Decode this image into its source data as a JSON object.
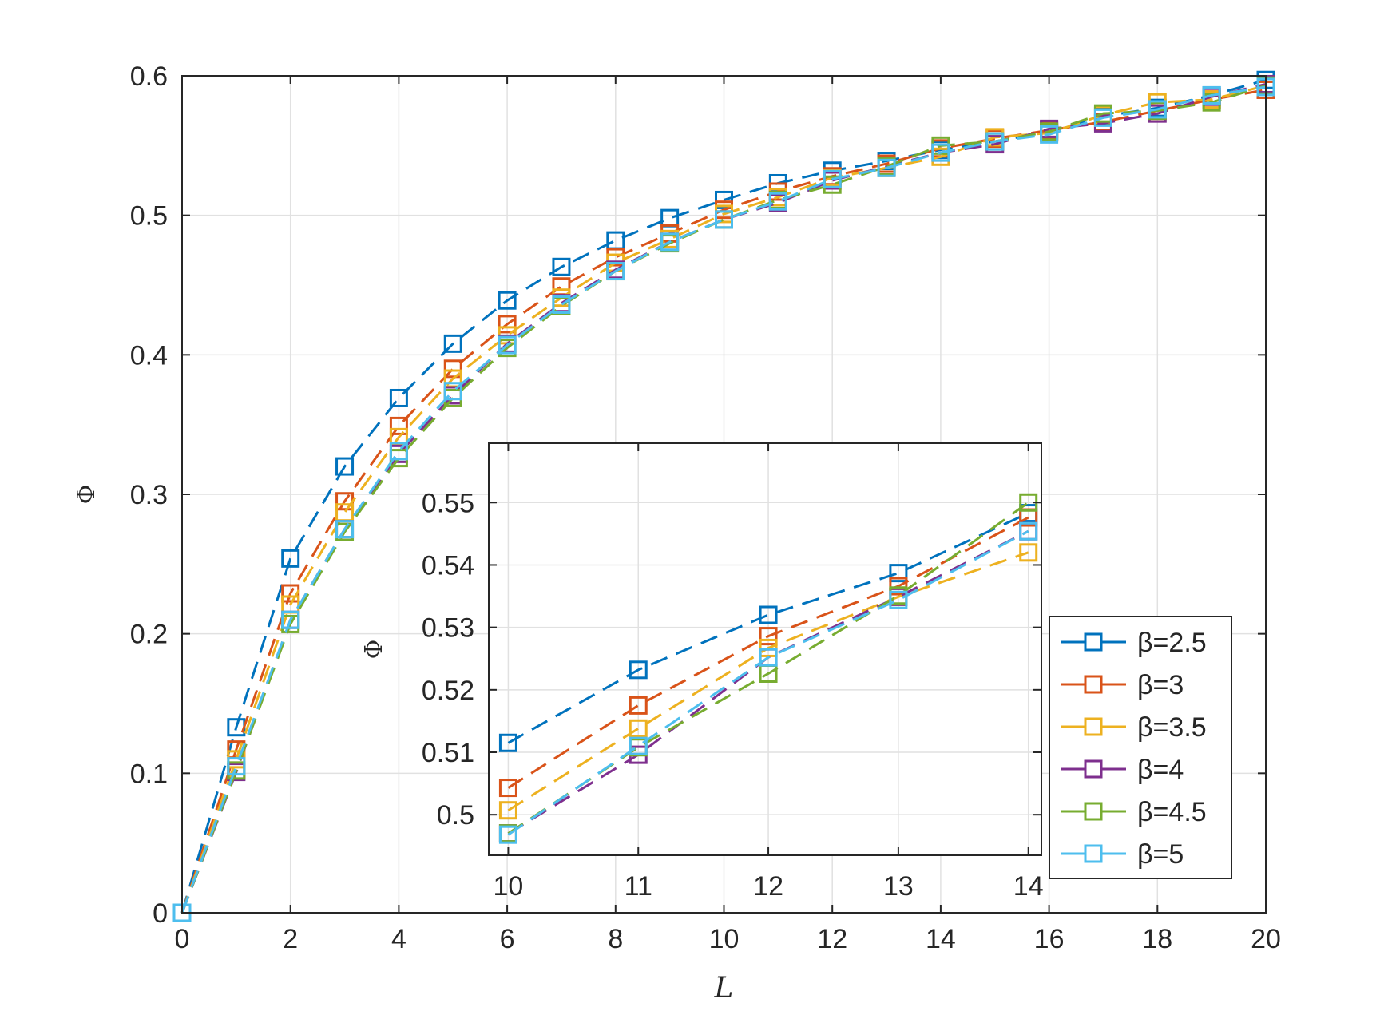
{
  "chart_data": [
    {
      "type": "line",
      "xlabel": "L",
      "ylabel": "Φ",
      "xlim": [
        0,
        20
      ],
      "ylim": [
        0,
        0.6
      ],
      "xticks": [
        "0",
        "2",
        "4",
        "6",
        "8",
        "10",
        "12",
        "14",
        "16",
        "18",
        "20"
      ],
      "yticks": [
        "0",
        "0.1",
        "0.2",
        "0.3",
        "0.4",
        "0.5",
        "0.6"
      ],
      "grid": true,
      "legend_position": "lower-right",
      "marker": "square",
      "line_style": "dashed",
      "series": [
        {
          "name": "β=2.5",
          "color": "#0072BD",
          "x": [
            0,
            1,
            2,
            3,
            4,
            5,
            6,
            7,
            8,
            9,
            10,
            11,
            12,
            13,
            14,
            15,
            16,
            17,
            18,
            19,
            20
          ],
          "values": [
            0,
            0.133,
            0.254,
            0.32,
            0.369,
            0.408,
            0.439,
            0.463,
            0.482,
            0.498,
            0.511,
            0.523,
            0.532,
            0.539,
            0.547,
            0.553,
            0.56,
            0.571,
            0.577,
            0.586,
            0.597
          ]
        },
        {
          "name": "β=3",
          "color": "#D95319",
          "x": [
            0,
            1,
            2,
            3,
            4,
            5,
            6,
            7,
            8,
            9,
            10,
            11,
            12,
            13,
            14,
            15,
            16,
            17,
            18,
            19,
            20
          ],
          "values": [
            0,
            0.117,
            0.229,
            0.295,
            0.349,
            0.39,
            0.422,
            0.449,
            0.47,
            0.487,
            0.504,
            0.517,
            0.528,
            0.537,
            0.548,
            0.555,
            0.561,
            0.567,
            0.575,
            0.583,
            0.59
          ]
        },
        {
          "name": "β=3.5",
          "color": "#EDB120",
          "x": [
            0,
            1,
            2,
            3,
            4,
            5,
            6,
            7,
            8,
            9,
            10,
            11,
            12,
            13,
            14,
            15,
            16,
            17,
            18,
            19,
            20
          ],
          "values": [
            0,
            0.11,
            0.221,
            0.287,
            0.341,
            0.383,
            0.414,
            0.441,
            0.466,
            0.483,
            0.501,
            0.513,
            0.527,
            0.534,
            0.542,
            0.556,
            0.559,
            0.572,
            0.581,
            0.583,
            0.593
          ]
        },
        {
          "name": "β=4",
          "color": "#7E2F8E",
          "x": [
            0,
            1,
            2,
            3,
            4,
            5,
            6,
            7,
            8,
            9,
            10,
            11,
            12,
            13,
            14,
            15,
            16,
            17,
            18,
            19,
            20
          ],
          "values": [
            0,
            0.101,
            0.21,
            0.275,
            0.329,
            0.371,
            0.408,
            0.437,
            0.461,
            0.481,
            0.497,
            0.509,
            0.525,
            0.535,
            0.545,
            0.551,
            0.562,
            0.566,
            0.573,
            0.585,
            0.594
          ]
        },
        {
          "name": "β=4.5",
          "color": "#77AC30",
          "x": [
            0,
            1,
            2,
            3,
            4,
            5,
            6,
            7,
            8,
            9,
            10,
            11,
            12,
            13,
            14,
            15,
            16,
            17,
            18,
            19,
            20
          ],
          "values": [
            0,
            0.102,
            0.207,
            0.273,
            0.326,
            0.369,
            0.405,
            0.435,
            0.46,
            0.48,
            0.497,
            0.511,
            0.522,
            0.535,
            0.55,
            0.553,
            0.56,
            0.573,
            0.575,
            0.581,
            0.593
          ]
        },
        {
          "name": "β=5",
          "color": "#4DBEEE",
          "x": [
            0,
            1,
            2,
            3,
            4,
            5,
            6,
            7,
            8,
            9,
            10,
            11,
            12,
            13,
            14,
            15,
            16,
            17,
            18,
            19,
            20
          ],
          "values": [
            0,
            0.105,
            0.21,
            0.275,
            0.331,
            0.374,
            0.407,
            0.436,
            0.46,
            0.481,
            0.497,
            0.51,
            0.526,
            0.534,
            0.545,
            0.553,
            0.558,
            0.57,
            0.576,
            0.586,
            0.592
          ]
        }
      ]
    },
    {
      "type": "line",
      "role": "inset",
      "ylabel": "Φ",
      "xlim": [
        9.85,
        14.1
      ],
      "ylim": [
        0.4935,
        0.5595
      ],
      "xticks": [
        "10",
        "11",
        "12",
        "13",
        "14"
      ],
      "yticks": [
        "0.5",
        "0.51",
        "0.52",
        "0.53",
        "0.54",
        "0.55"
      ],
      "grid": true,
      "series": [
        {
          "name": "β=2.5",
          "color": "#0072BD",
          "x": [
            10,
            11,
            12,
            13,
            14
          ],
          "values": [
            0.5115,
            0.5232,
            0.532,
            0.5387,
            0.5483
          ]
        },
        {
          "name": "β=3",
          "color": "#D95319",
          "x": [
            10,
            11,
            12,
            13,
            14
          ],
          "values": [
            0.5043,
            0.5175,
            0.5286,
            0.5366,
            0.5476
          ]
        },
        {
          "name": "β=3.5",
          "color": "#EDB120",
          "x": [
            10,
            11,
            12,
            13,
            14
          ],
          "values": [
            0.5007,
            0.5138,
            0.5267,
            0.5349,
            0.542
          ]
        },
        {
          "name": "β=4",
          "color": "#7E2F8E",
          "x": [
            10,
            11,
            12,
            13,
            14
          ],
          "values": [
            0.497,
            0.5096,
            0.5252,
            0.5349,
            0.5454
          ]
        },
        {
          "name": "β=4.5",
          "color": "#77AC30",
          "x": [
            10,
            11,
            12,
            13,
            14
          ],
          "values": [
            0.497,
            0.5108,
            0.5226,
            0.5351,
            0.55
          ]
        },
        {
          "name": "β=5",
          "color": "#4DBEEE",
          "x": [
            10,
            11,
            12,
            13,
            14
          ],
          "values": [
            0.4968,
            0.511,
            0.5252,
            0.5344,
            0.5454
          ]
        }
      ]
    }
  ]
}
